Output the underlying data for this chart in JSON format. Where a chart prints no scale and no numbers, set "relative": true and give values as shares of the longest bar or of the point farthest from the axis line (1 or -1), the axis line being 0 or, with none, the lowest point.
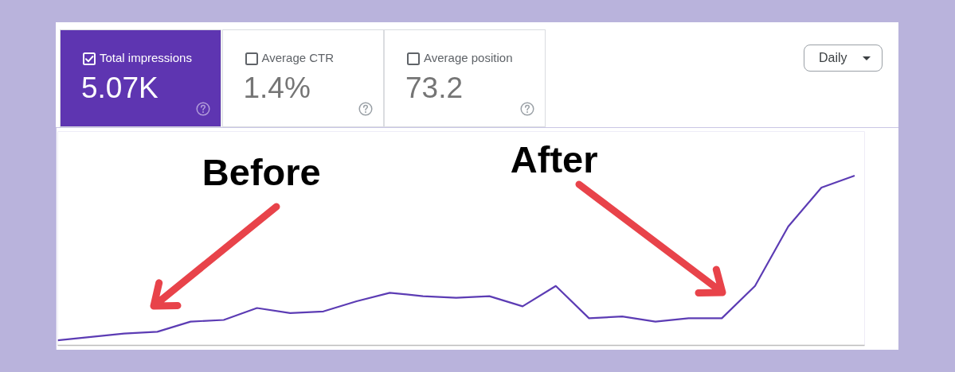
{
  "chart_data": [
    {
      "type": "other",
      "categories": [
        "Total impressions",
        "Average CTR",
        "Average position"
      ],
      "value_labels": [
        "5.07K",
        "1.4%",
        "73.2"
      ],
      "colors": [
        "#5e35b1",
        "#ffffff",
        "#ffffff"
      ],
      "annotations": [
        "Daily"
      ]
    },
    {
      "type": "line",
      "categories": [
        null,
        null,
        null,
        null,
        null,
        null,
        null,
        null,
        null,
        null,
        null,
        null,
        null,
        null,
        null,
        null,
        null,
        null,
        null,
        null,
        null,
        null,
        null,
        null,
        null
      ],
      "values": [
        0.03,
        0.05,
        0.07,
        0.08,
        0.14,
        0.15,
        0.22,
        0.19,
        0.2,
        0.26,
        0.31,
        0.29,
        0.28,
        0.29,
        0.23,
        0.35,
        0.16,
        0.17,
        0.14,
        0.16,
        0.16,
        0.35,
        0.7,
        0.93,
        1
      ],
      "color": "#5c3cb4",
      "relative": true,
      "line_style": "solid",
      "annotations": [
        "Before",
        "After"
      ]
    }
  ]
}
